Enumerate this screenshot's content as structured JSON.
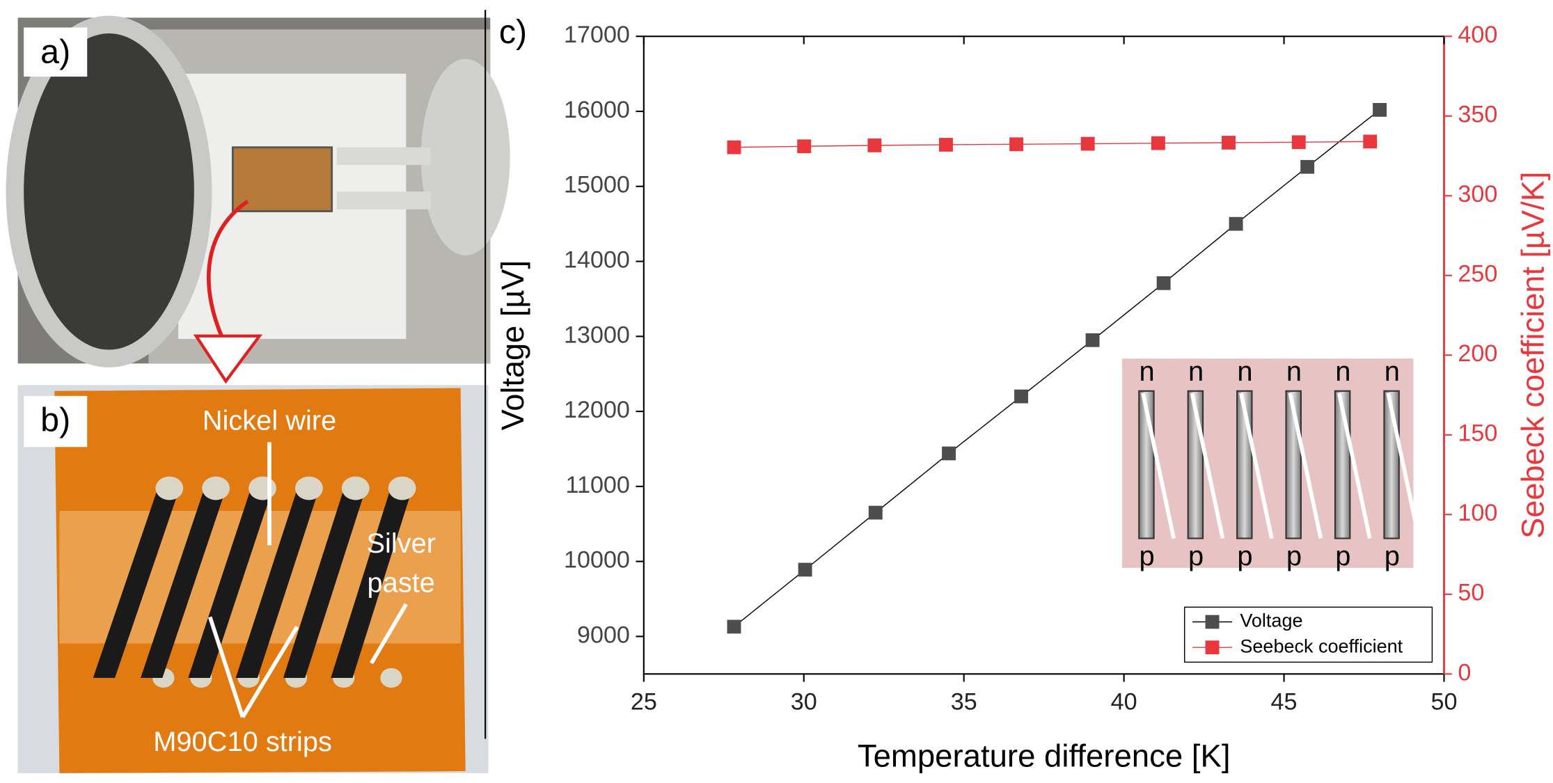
{
  "panel_labels": {
    "a": "a)",
    "b": "b)",
    "c": "c)"
  },
  "photo_b_labels": {
    "nickel_wire": "Nickel wire",
    "silver_paste": [
      "Silver",
      "paste"
    ],
    "strips": "M90C10 strips"
  },
  "inset": {
    "top_labels": [
      "n",
      "n",
      "n",
      "n",
      "n",
      "n"
    ],
    "bottom_labels": [
      "p",
      "p",
      "p",
      "p",
      "p",
      "p"
    ]
  },
  "chart_data": {
    "type": "line",
    "xlabel": "Temperature difference [K]",
    "ylabel": "Voltage [µV]",
    "y2label": "Seebeck coefficient [µV/K]",
    "xlim": [
      25,
      50
    ],
    "xticks": [
      25,
      30,
      35,
      40,
      45,
      50
    ],
    "ylim": [
      8500,
      17000
    ],
    "yticks": [
      9000,
      10000,
      11000,
      12000,
      13000,
      14000,
      15000,
      16000,
      17000
    ],
    "y2lim": [
      0,
      400
    ],
    "y2ticks": [
      0,
      50,
      100,
      150,
      200,
      250,
      300,
      350,
      400
    ],
    "legend": "lower right",
    "marker": "square",
    "series": [
      {
        "name": "Voltage",
        "color": "#4d4d4d",
        "x": [
          27.82,
          30.04,
          32.24,
          34.53,
          36.79,
          39.02,
          41.24,
          43.5,
          45.73,
          47.99
        ],
        "values": [
          9130,
          9890,
          10650,
          11440,
          12200,
          12950,
          13710,
          14500,
          15260,
          16020
        ]
      },
      {
        "name": "Seebeck coefficient",
        "color": "#e8383d",
        "axis": "y2",
        "x": [
          27.82,
          30.01,
          32.21,
          34.44,
          36.64,
          38.87,
          41.07,
          43.27,
          45.46,
          47.69
        ],
        "values": [
          330.4,
          331,
          331.6,
          332,
          332.3,
          332.6,
          333,
          333.3,
          333.6,
          334
        ]
      }
    ]
  }
}
